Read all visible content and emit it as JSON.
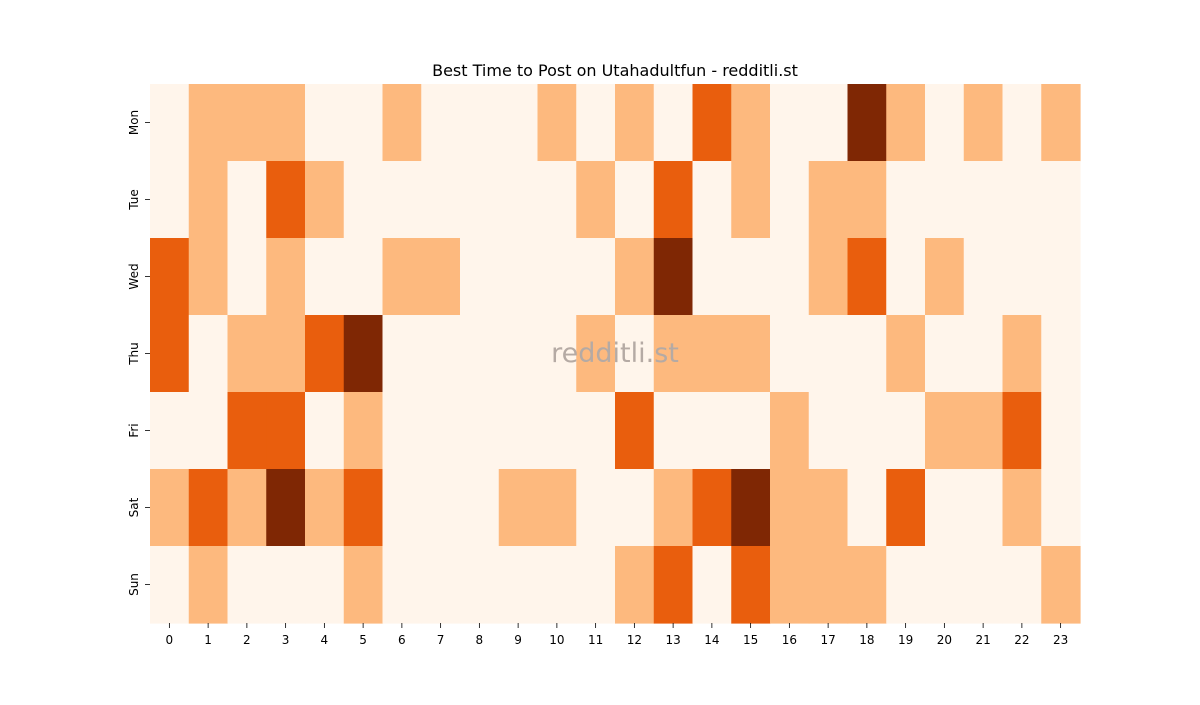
{
  "chart_data": {
    "type": "heatmap",
    "title": "Best Time to Post on Utahadultfun - redditli.st",
    "watermark": "redditli.st",
    "x": [
      "0",
      "1",
      "2",
      "3",
      "4",
      "5",
      "6",
      "7",
      "8",
      "9",
      "10",
      "11",
      "12",
      "13",
      "14",
      "15",
      "16",
      "17",
      "18",
      "19",
      "20",
      "21",
      "22",
      "23"
    ],
    "y": [
      "Mon",
      "Tue",
      "Wed",
      "Thu",
      "Fri",
      "Sat",
      "Sun"
    ],
    "values": [
      [
        0,
        1,
        1,
        1,
        0,
        0,
        1,
        0,
        0,
        0,
        1,
        0,
        1,
        0,
        2,
        1,
        0,
        0,
        3,
        1,
        0,
        1,
        0,
        1
      ],
      [
        0,
        1,
        0,
        2,
        1,
        0,
        0,
        0,
        0,
        0,
        0,
        1,
        0,
        2,
        0,
        1,
        0,
        1,
        1,
        0,
        0,
        0,
        0,
        0
      ],
      [
        2,
        1,
        0,
        1,
        0,
        0,
        1,
        1,
        0,
        0,
        0,
        0,
        1,
        3,
        0,
        0,
        0,
        1,
        2,
        0,
        1,
        0,
        0,
        0
      ],
      [
        2,
        0,
        1,
        1,
        2,
        3,
        0,
        0,
        0,
        0,
        0,
        1,
        0,
        1,
        1,
        1,
        0,
        0,
        0,
        1,
        0,
        0,
        1,
        0
      ],
      [
        0,
        0,
        2,
        2,
        0,
        1,
        0,
        0,
        0,
        0,
        0,
        0,
        2,
        0,
        0,
        0,
        1,
        0,
        0,
        0,
        1,
        1,
        2,
        0
      ],
      [
        1,
        2,
        1,
        3,
        1,
        2,
        0,
        0,
        0,
        1,
        1,
        0,
        0,
        1,
        2,
        3,
        1,
        1,
        0,
        2,
        0,
        0,
        1,
        0
      ],
      [
        0,
        1,
        0,
        0,
        0,
        1,
        0,
        0,
        0,
        0,
        0,
        0,
        1,
        2,
        0,
        2,
        1,
        1,
        1,
        0,
        0,
        0,
        0,
        1
      ]
    ],
    "value_range": [
      0,
      3
    ],
    "colormap": [
      "#fff5eb",
      "#fdb97e",
      "#e95e0d",
      "#7f2704"
    ],
    "legend": "none",
    "grid": false
  }
}
